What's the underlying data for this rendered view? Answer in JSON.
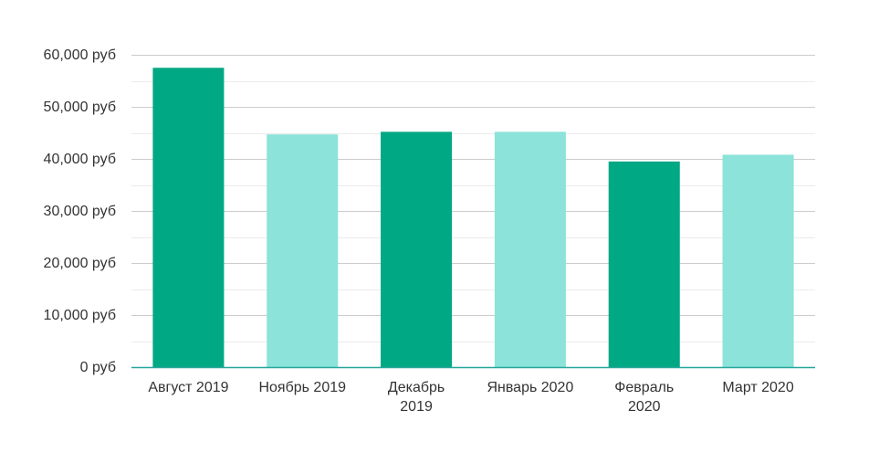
{
  "chart_data": {
    "type": "bar",
    "categories": [
      [
        "Август 2019"
      ],
      [
        "Ноябрь 2019"
      ],
      [
        "Декабрь",
        "2019"
      ],
      [
        "Январь 2020"
      ],
      [
        "Февраль",
        "2020"
      ],
      [
        "Март 2020"
      ]
    ],
    "values": [
      57500,
      44700,
      45200,
      45200,
      39500,
      40800
    ],
    "bar_colors": [
      "#00a884",
      "#8be3d9",
      "#00a884",
      "#8be3d9",
      "#00a884",
      "#8be3d9"
    ],
    "ylim": [
      0,
      60000
    ],
    "y_ticks": [
      0,
      10000,
      20000,
      30000,
      40000,
      50000,
      60000
    ],
    "y_tick_labels": [
      "0 руб",
      "10,000 руб",
      "20,000 руб",
      "30,000 руб",
      "40,000 руб",
      "50,000 руб",
      "60,000 руб"
    ],
    "grid": true,
    "axis_color": "#26a69a",
    "grid_color": "#cccccc",
    "minor_grid_color": "#ebebeb"
  }
}
